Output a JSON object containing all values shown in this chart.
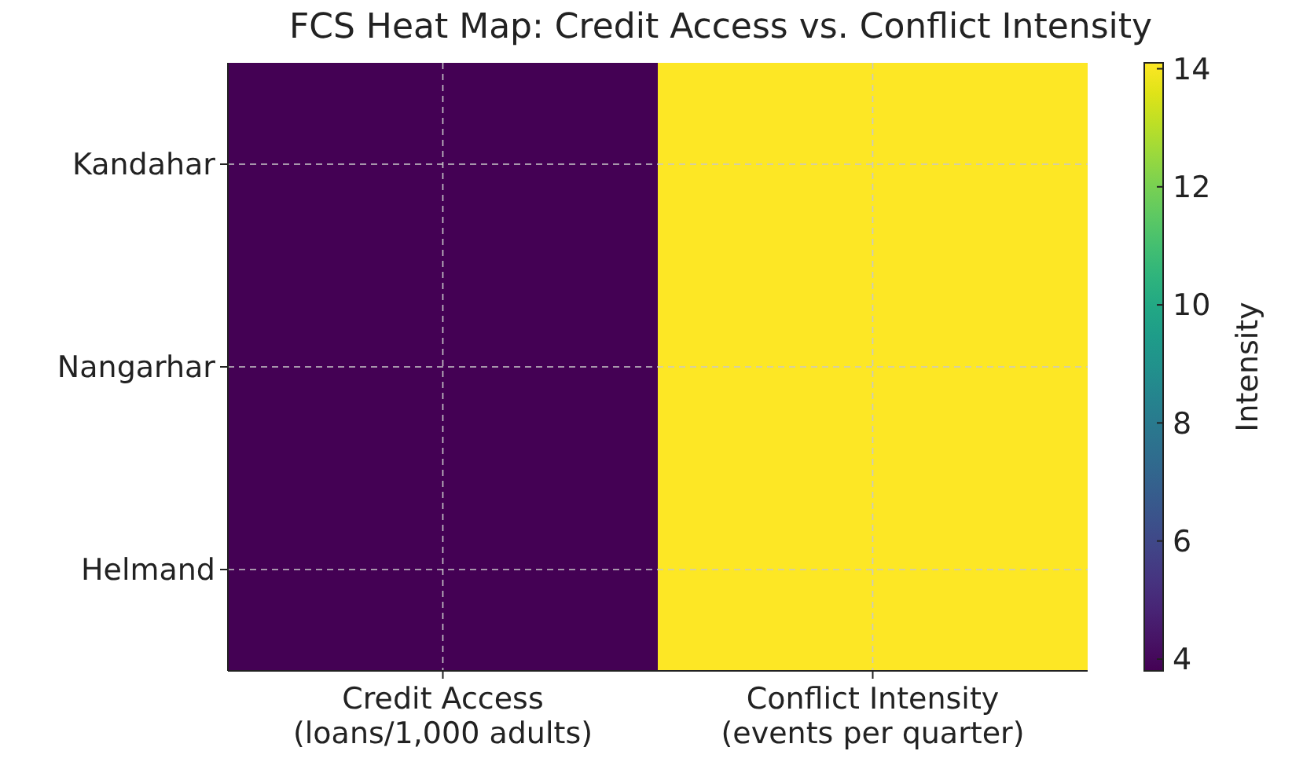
{
  "chart_data": {
    "type": "heatmap",
    "title": "FCS Heat Map: Credit Access vs. Conflict Intensity",
    "categories": [
      "Credit Access\n(loans/1,000 adults)",
      "Conflict Intensity\n(events per quarter)"
    ],
    "y_categories": [
      "Kandahar",
      "Nangarhar",
      "Helmand"
    ],
    "cells": [
      [
        3.8,
        14.1
      ],
      [
        3.8,
        14.1
      ],
      [
        3.8,
        14.1
      ]
    ],
    "clim": [
      3.8,
      14.1
    ],
    "cticks": [
      4,
      6,
      8,
      10,
      12,
      14
    ],
    "clabel": "Intensity",
    "grid": true
  }
}
